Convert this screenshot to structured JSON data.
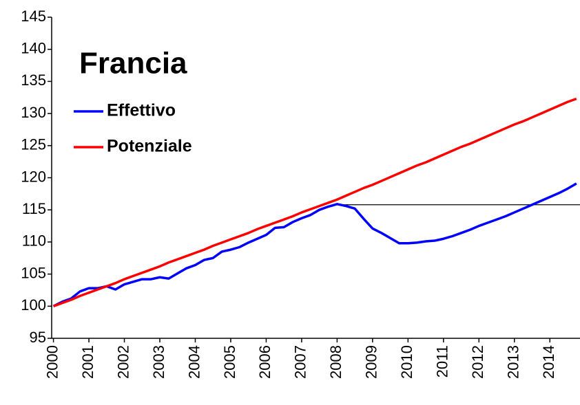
{
  "chart_data": {
    "type": "line",
    "title": "Francia",
    "x": [
      2000,
      2000.25,
      2000.5,
      2000.75,
      2001,
      2001.25,
      2001.5,
      2001.75,
      2002,
      2002.25,
      2002.5,
      2002.75,
      2003,
      2003.25,
      2003.5,
      2003.75,
      2004,
      2004.25,
      2004.5,
      2004.75,
      2005,
      2005.25,
      2005.5,
      2005.75,
      2006,
      2006.25,
      2006.5,
      2006.75,
      2007,
      2007.25,
      2007.5,
      2007.75,
      2008,
      2008.25,
      2008.5,
      2008.75,
      2009,
      2009.25,
      2009.5,
      2009.75,
      2010,
      2010.25,
      2010.5,
      2010.75,
      2011,
      2011.25,
      2011.5,
      2011.75,
      2012,
      2012.25,
      2012.5,
      2012.75,
      2013,
      2013.25,
      2013.5,
      2013.75,
      2014,
      2014.25,
      2014.5,
      2014.75
    ],
    "series": [
      {
        "name": "Effettivo",
        "color": "#0000ff",
        "values": [
          100,
          100.7,
          101.2,
          102.3,
          102.8,
          102.8,
          103.1,
          102.6,
          103.4,
          103.8,
          104.2,
          104.2,
          104.5,
          104.3,
          105.1,
          105.9,
          106.4,
          107.2,
          107.5,
          108.5,
          108.8,
          109.2,
          109.9,
          110.5,
          111.1,
          112.2,
          112.3,
          113.1,
          113.7,
          114.2,
          115.0,
          115.5,
          115.9,
          115.6,
          115.2,
          113.6,
          112.1,
          111.4,
          110.6,
          109.8,
          109.8,
          109.9,
          110.1,
          110.2,
          110.5,
          110.9,
          111.4,
          111.9,
          112.5,
          113.0,
          113.5,
          114.0,
          114.6,
          115.2,
          115.8,
          116.4,
          117.0,
          117.6,
          118.3,
          119.1
        ]
      },
      {
        "name": "Potenziale",
        "color": "#ff0000",
        "values": [
          100,
          100.5,
          101.0,
          101.6,
          102.1,
          102.6,
          103.1,
          103.6,
          104.2,
          104.7,
          105.2,
          105.7,
          106.2,
          106.8,
          107.3,
          107.8,
          108.3,
          108.8,
          109.4,
          109.9,
          110.4,
          110.9,
          111.4,
          112.0,
          112.5,
          113.0,
          113.5,
          114.0,
          114.6,
          115.1,
          115.6,
          116.1,
          116.6,
          117.2,
          117.8,
          118.4,
          118.9,
          119.5,
          120.1,
          120.7,
          121.3,
          121.9,
          122.4,
          123.0,
          123.6,
          124.2,
          124.8,
          125.3,
          125.9,
          126.5,
          127.1,
          127.7,
          128.3,
          128.8,
          129.4,
          130.0,
          130.6,
          131.2,
          131.8,
          132.3
        ]
      }
    ],
    "reference_line": {
      "value": 115.8,
      "from": 2008
    },
    "xlim": [
      1999.95,
      2014.85
    ],
    "xticks": [
      2000,
      2001,
      2002,
      2003,
      2004,
      2005,
      2006,
      2007,
      2008,
      2009,
      2010,
      2011,
      2012,
      2013,
      2014
    ],
    "ylim": [
      95,
      145
    ],
    "yticks": [
      95,
      100,
      105,
      110,
      115,
      120,
      125,
      130,
      135,
      140,
      145
    ],
    "grid": false
  }
}
